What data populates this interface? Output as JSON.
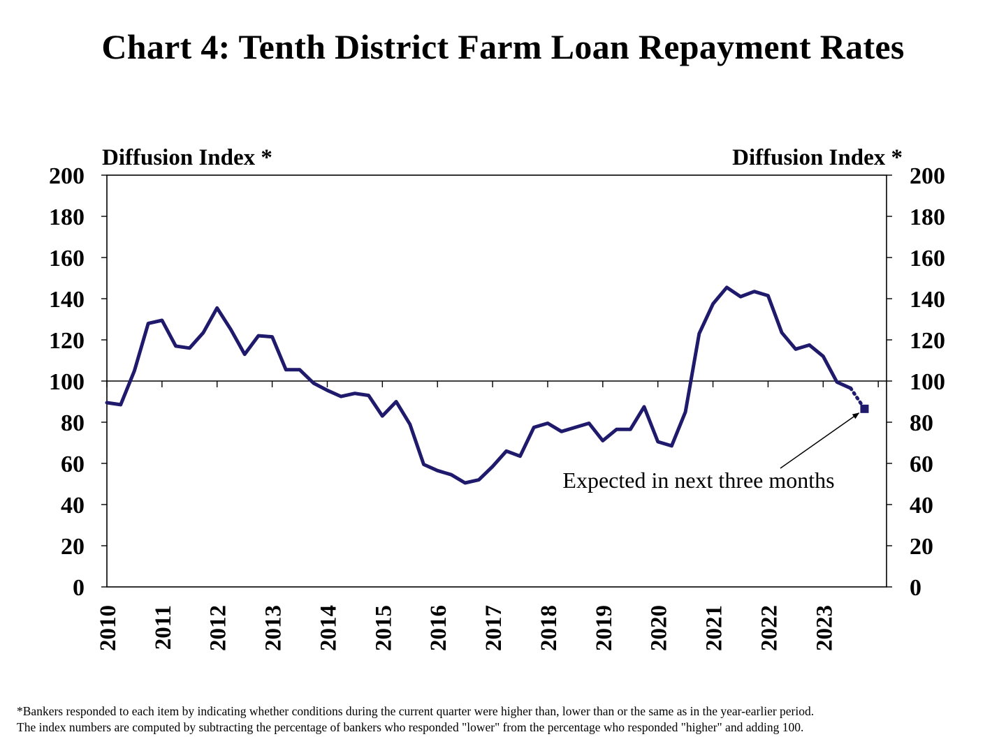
{
  "title": "Chart 4: Tenth District Farm Loan Repayment Rates",
  "footnote": {
    "line1": "*Bankers responded to each item by indicating  whether conditions during the current quarter were higher than,  lower than or the same as in the year-earlier period.",
    "line2": "The index  numbers are computed by subtracting the percentage of bankers who responded \"lower\"  from the percentage who responded \"higher\"  and adding 100."
  },
  "chart_data": {
    "type": "line",
    "title": "Chart 4: Tenth District Farm Loan Repayment Rates",
    "ylabel_left": "Diffusion Index *",
    "ylabel_right": "Diffusion Index *",
    "ylim": [
      0,
      200
    ],
    "yticks": [
      0,
      20,
      40,
      60,
      80,
      100,
      120,
      140,
      160,
      180,
      200
    ],
    "xlim": [
      2010,
      2024.15
    ],
    "xticks": [
      "2010",
      "2011",
      "2012",
      "2013",
      "2014",
      "2015",
      "2016",
      "2017",
      "2018",
      "2019",
      "2020",
      "2021",
      "2022",
      "2023"
    ],
    "reference_line": 100,
    "line_color": "#1f1a6b",
    "series": [
      {
        "x": [
          2010.0,
          2010.25,
          2010.5,
          2010.75,
          2011.0,
          2011.25,
          2011.5,
          2011.75,
          2012.0,
          2012.25,
          2012.5,
          2012.75,
          2013.0,
          2013.25,
          2013.5,
          2013.75,
          2014.0,
          2014.25,
          2014.5,
          2014.75,
          2015.0,
          2015.25,
          2015.5,
          2015.75,
          2016.0,
          2016.25,
          2016.5,
          2016.75,
          2017.0,
          2017.25,
          2017.5,
          2017.75,
          2018.0,
          2018.25,
          2018.5,
          2018.75,
          2019.0,
          2019.25,
          2019.5,
          2019.75,
          2020.0,
          2020.25,
          2020.5,
          2020.75,
          2021.0,
          2021.25,
          2021.5,
          2021.75,
          2022.0,
          2022.25,
          2022.5,
          2022.75,
          2023.0,
          2023.25,
          2023.5
        ],
        "values": [
          89.5,
          88.5,
          105,
          128,
          129.5,
          117,
          116,
          123.5,
          135.5,
          125,
          113,
          122,
          121.5,
          105.5,
          105.5,
          99,
          95.5,
          92.5,
          94,
          93,
          83,
          90,
          79,
          59.5,
          56.5,
          54.5,
          50.5,
          52,
          58.5,
          66,
          63.5,
          77.5,
          79.5,
          75.5,
          77.5,
          79.5,
          71,
          76.5,
          76.5,
          87.5,
          70.5,
          68.5,
          85,
          123,
          137.5,
          145.5,
          141,
          143.5,
          141.5,
          123.5,
          115.5,
          117.5,
          112,
          99.5,
          96.5
        ]
      },
      {
        "x": [
          2023.5,
          2023.75
        ],
        "values": [
          96.5,
          86.5
        ]
      }
    ],
    "annotation": {
      "text": "Expected in next three months",
      "x": 2023.75,
      "y": 86.5
    }
  }
}
